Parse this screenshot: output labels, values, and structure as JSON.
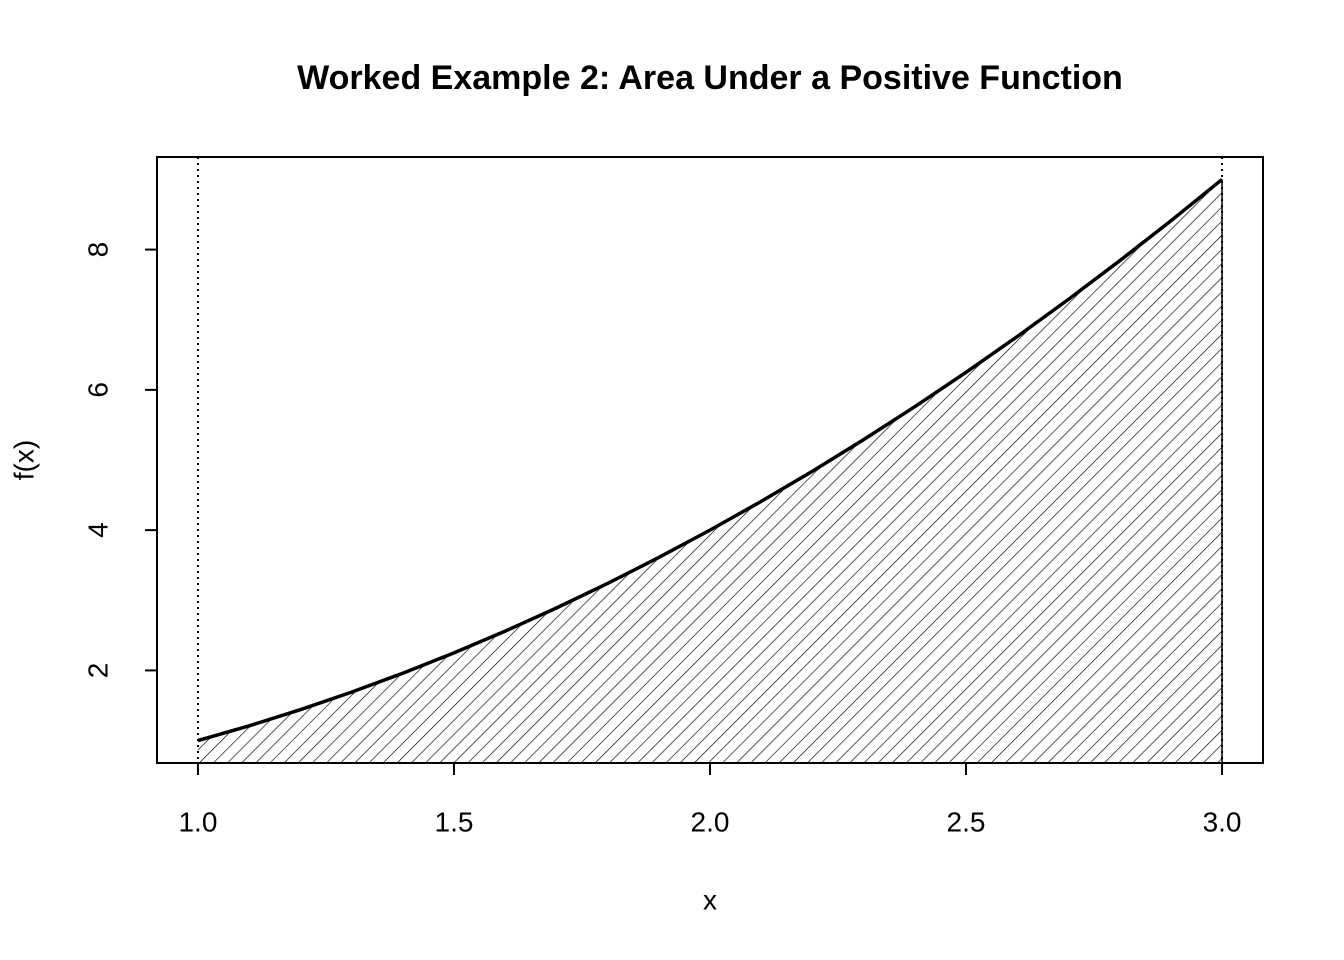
{
  "chart_data": {
    "type": "area",
    "title": "Worked Example 2: Area Under a Positive Function",
    "x_label": "x",
    "y_label": "f(x)",
    "x": [
      1.0,
      1.1,
      1.2,
      1.3,
      1.4,
      1.5,
      1.6,
      1.7,
      1.8,
      1.9,
      2.0,
      2.1,
      2.2,
      2.3,
      2.4,
      2.5,
      2.6,
      2.7,
      2.8,
      2.9,
      3.0
    ],
    "values": [
      1.0,
      1.21,
      1.44,
      1.69,
      1.96,
      2.25,
      2.56,
      2.89,
      3.24,
      3.61,
      4.0,
      4.41,
      4.84,
      5.29,
      5.76,
      6.25,
      6.76,
      7.29,
      7.84,
      8.41,
      9.0
    ],
    "color": "#000000",
    "vlines": [
      1,
      3
    ],
    "xlim": [
      0.92,
      3.08
    ],
    "ylim": [
      0.68,
      9.32
    ],
    "xticks": [
      {
        "value": 1,
        "label": "1.0"
      },
      1.5,
      {
        "value": 2,
        "label": "2.0"
      },
      2.5,
      {
        "value": 3,
        "label": "3.0"
      }
    ],
    "yticks": [
      2,
      4,
      6,
      8
    ]
  }
}
